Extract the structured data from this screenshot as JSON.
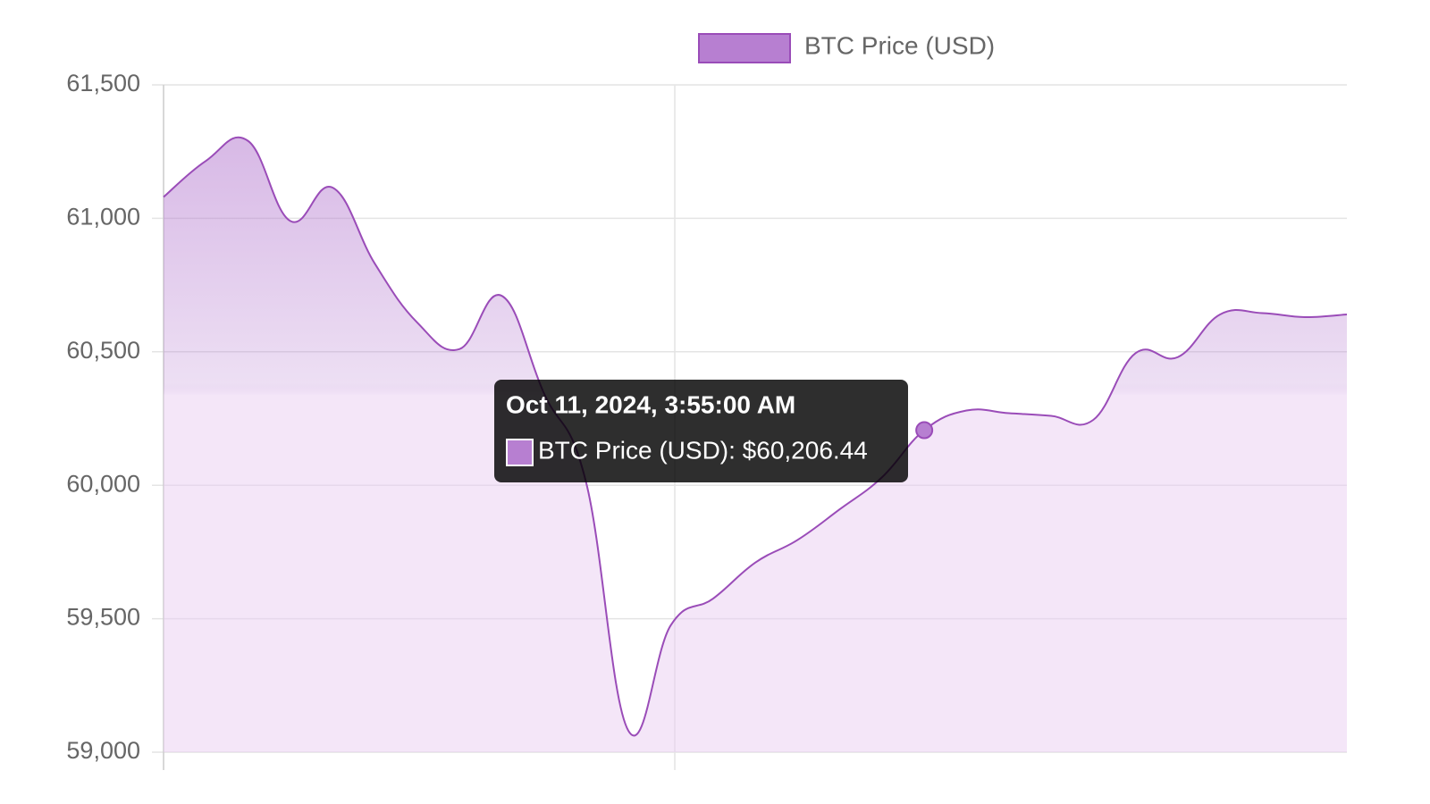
{
  "chart_data": {
    "type": "line",
    "categories": [
      null,
      null,
      null,
      null,
      null,
      null,
      null,
      null,
      null,
      null,
      null,
      null,
      null,
      null,
      null,
      null,
      null,
      null,
      null,
      null,
      null,
      null,
      null,
      null,
      null,
      null,
      null,
      null,
      null
    ],
    "series": [
      {
        "name": "BTC Price (USD)",
        "color": "#9a4cb8",
        "fill": "#b77fd1",
        "values": [
          61080,
          61215,
          61290,
          60990,
          61115,
          60830,
          60610,
          60510,
          60710,
          60345,
          60010,
          59080,
          59475,
          59575,
          59710,
          59795,
          59910,
          60030,
          60206.44,
          60280,
          60270,
          60260,
          60245,
          60495,
          60480,
          60640,
          60645,
          60630,
          60640
        ]
      }
    ],
    "ylim": [
      59000,
      61500
    ],
    "yticks": [
      {
        "value": 59000,
        "label": "59,000"
      },
      {
        "value": 59500,
        "label": "59,500"
      },
      {
        "value": 60000,
        "label": "60,000"
      },
      {
        "value": 60500,
        "label": "60,500"
      },
      {
        "value": 61000,
        "label": "61,000"
      },
      {
        "value": 61500,
        "label": "61,500"
      }
    ],
    "grid": true,
    "legend": "top",
    "tooltip": {
      "title": "Oct 11, 2024, 3:55:00 AM",
      "label": "BTC Price (USD): $60,206.44",
      "value": 60206.44
    }
  }
}
